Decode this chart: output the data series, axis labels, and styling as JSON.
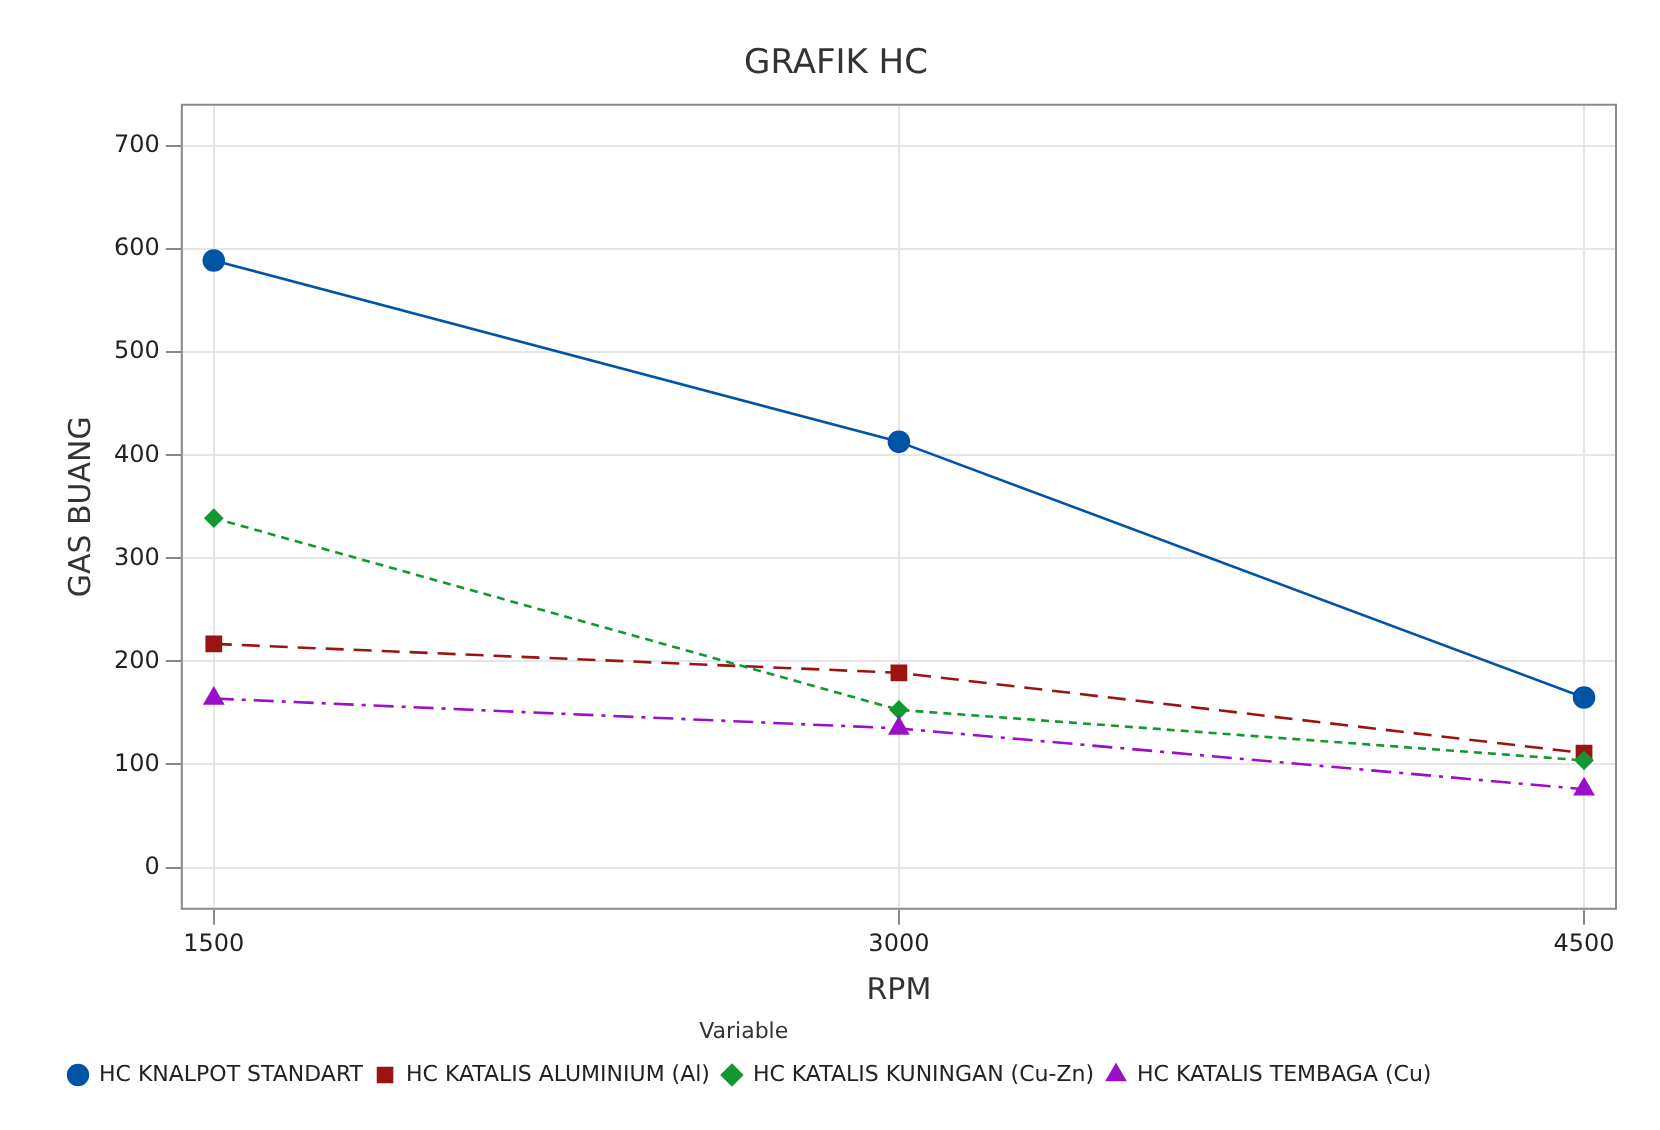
{
  "chart_data": {
    "type": "line",
    "title": "GRAFIK HC",
    "xlabel": "RPM",
    "ylabel": "GAS BUANG",
    "legend_title": "Variable",
    "legend": "bottom left",
    "grid": true,
    "x": [
      1500,
      3000,
      4500
    ],
    "xlim": [
      1430,
      4570
    ],
    "xticks": [
      1500,
      3000,
      4500
    ],
    "ylim": [
      -40,
      740
    ],
    "yticks": [
      0,
      100,
      200,
      300,
      400,
      500,
      600,
      700
    ],
    "series": [
      {
        "name": "HC KNALPOT STANDART",
        "color": "#0054a6",
        "values": [
          589,
          413,
          165
        ],
        "marker": "circle",
        "line_style": "solid"
      },
      {
        "name": "HC KATALIS ALUMINIUM (Al)",
        "color": "#9b1414",
        "values": [
          217,
          189,
          111
        ],
        "marker": "square",
        "line_style": "dashed"
      },
      {
        "name": "HC KATALIS KUNINGAN (Cu-Zn)",
        "color": "#119931",
        "values": [
          339,
          153,
          104
        ],
        "marker": "diamond",
        "line_style": "dotted"
      },
      {
        "name": "HC KATALIS TEMBAGA (Cu)",
        "color": "#9a10c8",
        "values": [
          164,
          135,
          76
        ],
        "marker": "triangle",
        "line_style": "dashdot"
      }
    ]
  }
}
